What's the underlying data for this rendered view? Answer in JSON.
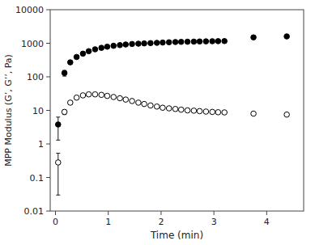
{
  "chart_data": {
    "type": "scatter",
    "xlabel": "Time (min)",
    "ylabel": "MPP Modulus (G’, G’’, Pa)",
    "xlim": [
      -0.1,
      4.7
    ],
    "ylim": [
      0.01,
      10000
    ],
    "xticks": [
      0,
      1,
      2,
      3,
      4
    ],
    "yticks": [
      0.01,
      0.1,
      1,
      10,
      100,
      1000,
      10000
    ],
    "log": "y",
    "grid": false,
    "series": [
      {
        "color": "black",
        "marker": "circle",
        "x": [
          0.05,
          0.17,
          0.28,
          0.4,
          0.52,
          0.63,
          0.75,
          0.87,
          0.98,
          1.1,
          1.22,
          1.33,
          1.45,
          1.57,
          1.68,
          1.8,
          1.92,
          2.03,
          2.15,
          2.27,
          2.38,
          2.5,
          2.62,
          2.73,
          2.85,
          2.97,
          3.08,
          3.2,
          3.75,
          4.38
        ],
        "values": [
          3.8,
          130,
          270,
          390,
          490,
          580,
          660,
          730,
          790,
          840,
          880,
          920,
          950,
          970,
          990,
          1010,
          1030,
          1050,
          1070,
          1090,
          1100,
          1110,
          1120,
          1130,
          1140,
          1150,
          1155,
          1160,
          1500,
          1600
        ],
        "errors": [
          2.5,
          25,
          28,
          20,
          22,
          18,
          18,
          18,
          16,
          16,
          15,
          15,
          15,
          15,
          14,
          14,
          14,
          14,
          14,
          14,
          14,
          14,
          14,
          14,
          14,
          14,
          14,
          14,
          55,
          75
        ]
      },
      {
        "color": "black",
        "marker": "open-circle",
        "x": [
          0.05,
          0.17,
          0.28,
          0.4,
          0.52,
          0.63,
          0.75,
          0.87,
          0.98,
          1.1,
          1.22,
          1.33,
          1.45,
          1.57,
          1.68,
          1.8,
          1.92,
          2.03,
          2.15,
          2.27,
          2.38,
          2.5,
          2.62,
          2.73,
          2.85,
          2.97,
          3.08,
          3.2,
          3.75,
          4.38
        ],
        "values": [
          0.28,
          9,
          17,
          24,
          28,
          30,
          30,
          29,
          27,
          25,
          23,
          21,
          19,
          17,
          15.5,
          14,
          13,
          12,
          11.5,
          11,
          10.5,
          10,
          9.8,
          9.5,
          9.2,
          9.0,
          8.8,
          8.7,
          8.0,
          7.5
        ],
        "errors": [
          0.25,
          1.5,
          2.0,
          2.0,
          2.0,
          2.0,
          2.0,
          1.8,
          1.8,
          1.5,
          1.5,
          1.3,
          1.2,
          1.0,
          1.0,
          1.0,
          0.9,
          0.8,
          0.8,
          0.8,
          0.7,
          0.7,
          0.7,
          0.6,
          0.6,
          0.6,
          0.6,
          0.6,
          0.5,
          0.5
        ]
      }
    ]
  }
}
